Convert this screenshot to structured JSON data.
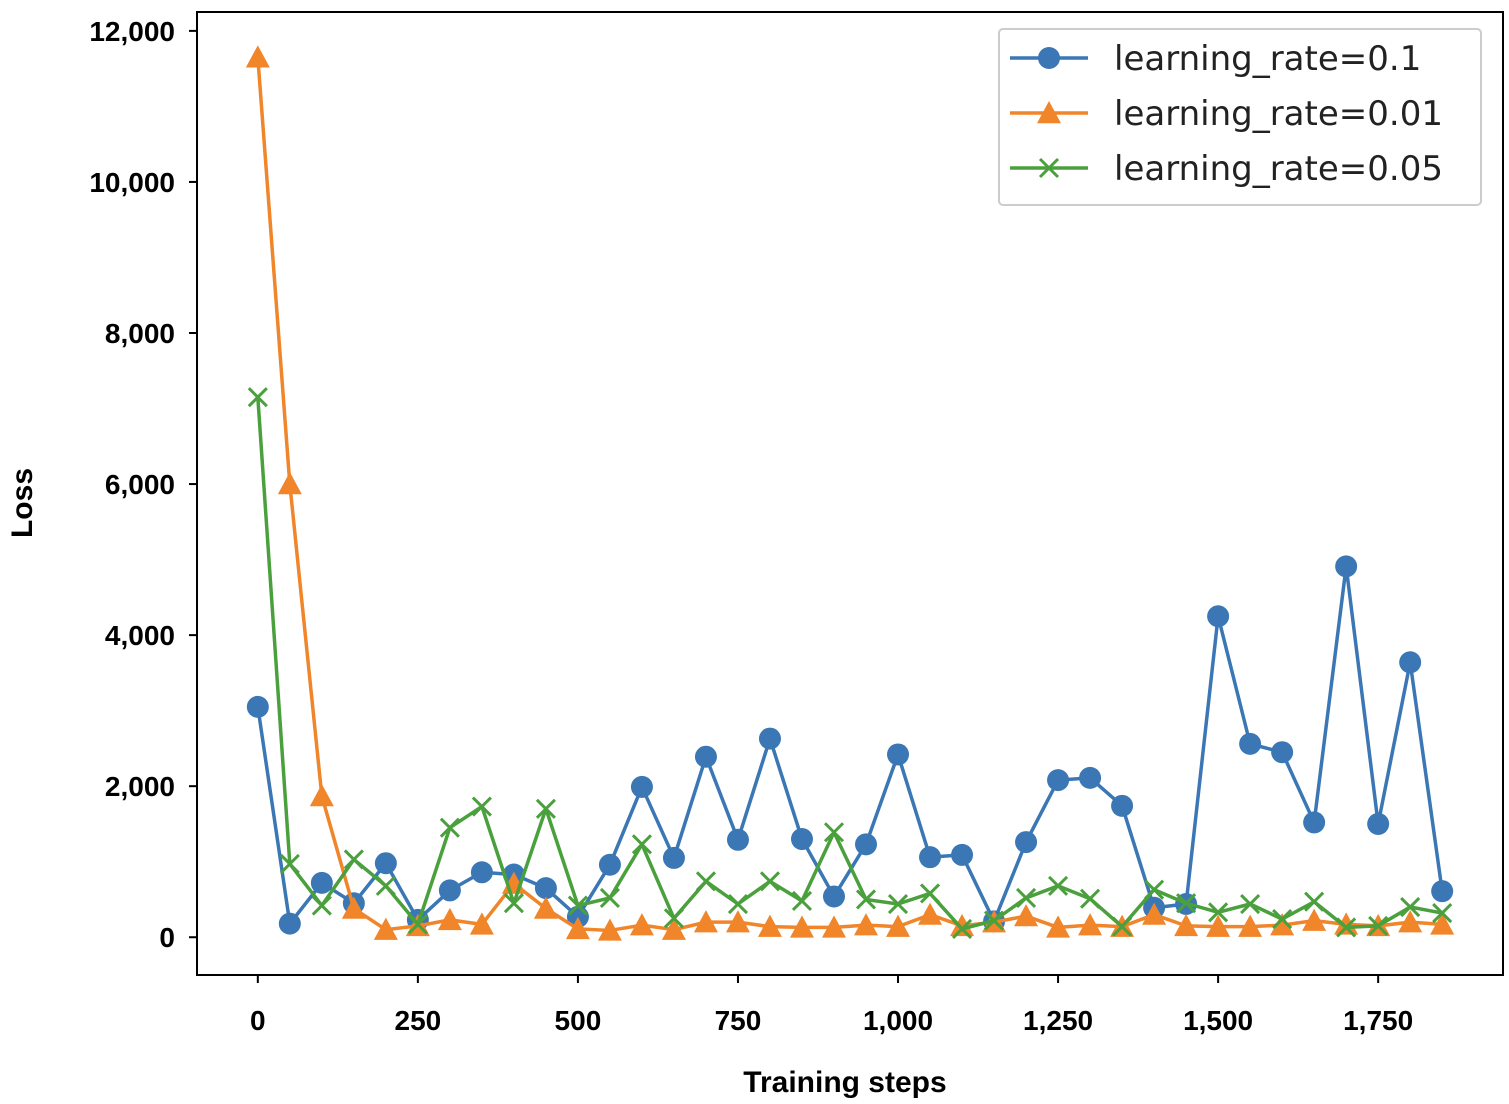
{
  "chart_data": {
    "type": "line",
    "xlabel": "Training steps",
    "ylabel": "Loss",
    "xlim": [
      -95,
      1945
    ],
    "ylim": [
      -500,
      12250
    ],
    "x_ticks": [
      0,
      250,
      500,
      750,
      1000,
      1250,
      1500,
      1750
    ],
    "x_tick_labels": [
      "0",
      "250",
      "500",
      "750",
      "1,000",
      "1,250",
      "1,500",
      "1,750"
    ],
    "y_ticks": [
      0,
      2000,
      4000,
      6000,
      8000,
      10000,
      12000
    ],
    "y_tick_labels": [
      "0",
      "2,000",
      "4,000",
      "6,000",
      "8,000",
      "10,000",
      "12,000"
    ],
    "grid": false,
    "legend_position": "top-right",
    "x": [
      0,
      50,
      100,
      150,
      200,
      250,
      300,
      350,
      400,
      450,
      500,
      550,
      600,
      650,
      700,
      750,
      800,
      850,
      900,
      950,
      1000,
      1050,
      1100,
      1150,
      1200,
      1250,
      1300,
      1350,
      1400,
      1450,
      1500,
      1550,
      1600,
      1650,
      1700,
      1750,
      1800,
      1850
    ],
    "series": [
      {
        "name": "learning_rate=0.1",
        "color": "#3a77b4",
        "marker": "circle",
        "values": [
          3050,
          180,
          720,
          450,
          980,
          230,
          620,
          860,
          830,
          650,
          270,
          960,
          1990,
          1050,
          2390,
          1290,
          2630,
          1300,
          540,
          1230,
          2420,
          1060,
          1090,
          210,
          1260,
          2080,
          2110,
          1740,
          390,
          440,
          4250,
          2560,
          2450,
          1520,
          4910,
          1500,
          3640,
          610
        ]
      },
      {
        "name": "learning_rate=0.01",
        "color": "#f0852a",
        "marker": "triangle",
        "values": [
          11650,
          6000,
          1870,
          380,
          100,
          150,
          230,
          170,
          710,
          380,
          110,
          90,
          160,
          100,
          200,
          200,
          140,
          130,
          130,
          160,
          140,
          300,
          150,
          200,
          280,
          130,
          160,
          140,
          300,
          150,
          140,
          140,
          160,
          220,
          170,
          150,
          200,
          170
        ]
      },
      {
        "name": "learning_rate=0.05",
        "color": "#4aa03c",
        "marker": "x",
        "values": [
          7150,
          970,
          420,
          1030,
          680,
          170,
          1450,
          1730,
          450,
          1700,
          420,
          520,
          1230,
          250,
          740,
          440,
          740,
          480,
          1390,
          500,
          440,
          580,
          110,
          220,
          520,
          680,
          510,
          140,
          630,
          450,
          330,
          440,
          240,
          470,
          130,
          150,
          400,
          320
        ]
      }
    ]
  }
}
